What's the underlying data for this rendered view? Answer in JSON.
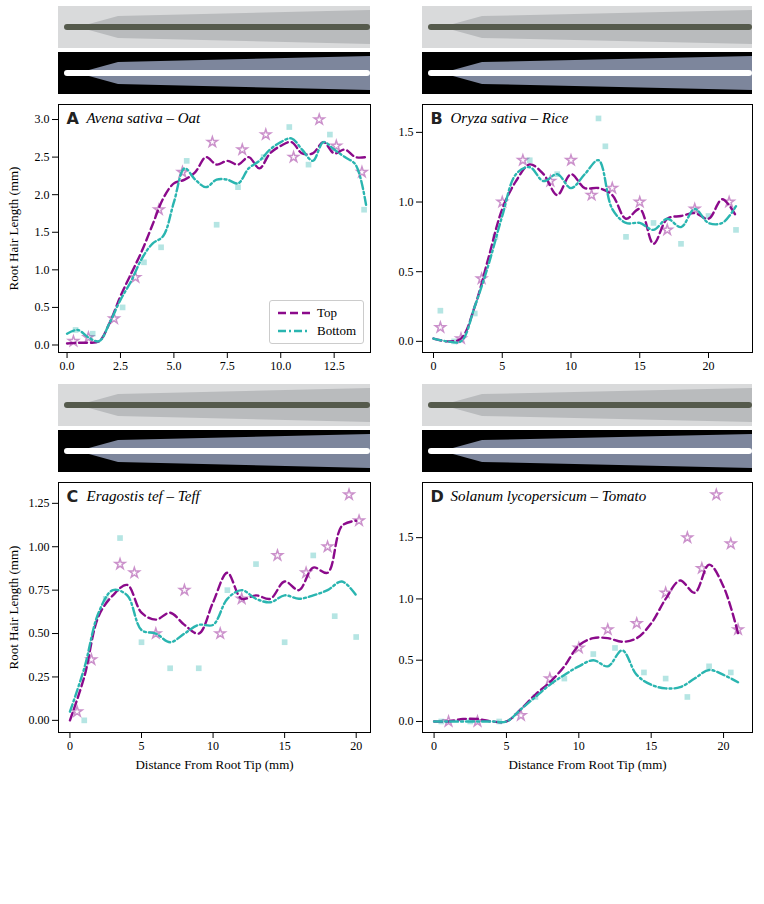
{
  "chart_data": [
    {
      "type": "line",
      "panel": "A",
      "title": "Avena sativa – Oat",
      "ylabel": "Root Hair Length (mm)",
      "xlim": [
        -0.4,
        14.2
      ],
      "xticks": [
        {
          "value": 0,
          "label": "0.0"
        },
        {
          "value": 2.5,
          "label": "2.5"
        },
        {
          "value": 5,
          "label": "5.0"
        },
        {
          "value": 7.5,
          "label": "7.5"
        },
        {
          "value": 10,
          "label": "10.0"
        },
        {
          "value": 12.5,
          "label": "12.5"
        }
      ],
      "ylim": [
        -0.1,
        3.2
      ],
      "yticks": [
        {
          "value": 0,
          "label": "0.0"
        },
        0.5,
        {
          "value": 1,
          "label": "1.0"
        },
        1.5,
        {
          "value": 2,
          "label": "2.0"
        },
        2.5,
        {
          "value": 3,
          "label": "3.0"
        }
      ],
      "legend": "lower right",
      "x": [
        0,
        0.5,
        1,
        1.5,
        2,
        2.5,
        3,
        3.5,
        4,
        4.5,
        5,
        5.5,
        6,
        6.5,
        7,
        7.5,
        8,
        8.5,
        9,
        9.5,
        10,
        10.5,
        11,
        11.5,
        12,
        12.5,
        13,
        13.5,
        14
      ],
      "series": [
        {
          "name": "Top",
          "color": "#8b0a8b",
          "line_style": "dashed",
          "marker": "star",
          "values": [
            0.02,
            0.03,
            0.03,
            0.05,
            0.3,
            0.65,
            0.95,
            1.25,
            1.6,
            1.95,
            2.15,
            2.2,
            2.3,
            2.5,
            2.4,
            2.45,
            2.4,
            2.5,
            2.35,
            2.55,
            2.65,
            2.7,
            2.55,
            2.55,
            2.7,
            2.55,
            2.6,
            2.5,
            2.5
          ],
          "points": {
            "x": [
              0.3,
              1,
              2.2,
              3.2,
              4.3,
              5.4,
              6.8,
              8.2,
              9.3,
              10.6,
              11.8,
              12.6,
              13.8
            ],
            "y": [
              0.05,
              0.1,
              0.35,
              0.9,
              1.8,
              2.3,
              2.7,
              2.6,
              2.8,
              2.5,
              3.0,
              2.65,
              2.3
            ]
          }
        },
        {
          "name": "Bottom",
          "color": "#2ab5b0",
          "line_style": "dashdot",
          "marker": "square",
          "values": [
            0.15,
            0.2,
            0.1,
            0.05,
            0.3,
            0.6,
            0.85,
            1.15,
            1.35,
            1.45,
            1.9,
            2.35,
            2.2,
            2.1,
            2.2,
            2.2,
            2.15,
            2.35,
            2.45,
            2.6,
            2.7,
            2.75,
            2.6,
            2.45,
            2.7,
            2.6,
            2.5,
            2.4,
            1.85
          ],
          "points": {
            "x": [
              0.4,
              1.2,
              2.6,
              3.6,
              4.4,
              5.6,
              7.0,
              8.0,
              9.2,
              10.4,
              11.3,
              12.3,
              13.9
            ],
            "y": [
              0.2,
              0.15,
              0.5,
              1.1,
              1.3,
              2.45,
              1.6,
              2.1,
              2.5,
              2.9,
              2.4,
              2.8,
              1.8
            ]
          }
        }
      ]
    },
    {
      "type": "line",
      "panel": "B",
      "title": "Oryza sativa – Rice",
      "xlim": [
        -0.8,
        23.2
      ],
      "xticks": [
        0,
        5,
        10,
        15,
        20
      ],
      "ylim": [
        -0.08,
        1.7
      ],
      "yticks": [
        {
          "value": 0,
          "label": "0.0"
        },
        0.5,
        {
          "value": 1,
          "label": "1.0"
        },
        1.5
      ],
      "x": [
        0,
        1,
        2,
        3,
        4,
        5,
        6,
        7,
        8,
        9,
        10,
        11,
        12,
        13,
        14,
        15,
        16,
        17,
        18,
        19,
        20,
        21,
        22
      ],
      "series": [
        {
          "name": "Top",
          "color": "#8b0a8b",
          "line_style": "dashed",
          "marker": "star",
          "values": [
            0.02,
            0.0,
            0.02,
            0.25,
            0.6,
            0.95,
            1.15,
            1.27,
            1.2,
            1.05,
            1.2,
            1.1,
            1.1,
            1.05,
            0.88,
            0.95,
            0.7,
            0.88,
            0.9,
            0.92,
            0.88,
            1.02,
            0.9
          ],
          "points": {
            "x": [
              0.5,
              2,
              3.5,
              5,
              6.5,
              8.5,
              10,
              11.5,
              13,
              15,
              17,
              19,
              21.5
            ],
            "y": [
              0.1,
              0.02,
              0.45,
              1.0,
              1.3,
              1.15,
              1.3,
              1.05,
              1.1,
              1.0,
              0.8,
              0.95,
              1.0
            ]
          }
        },
        {
          "name": "Bottom",
          "color": "#2ab5b0",
          "line_style": "dashdot",
          "marker": "square",
          "values": [
            0.02,
            0.0,
            0.0,
            0.25,
            0.55,
            0.9,
            1.2,
            1.25,
            1.15,
            1.2,
            1.1,
            1.2,
            1.3,
            0.95,
            0.85,
            0.85,
            0.8,
            0.88,
            0.82,
            0.95,
            0.85,
            0.85,
            0.97
          ],
          "points": {
            "x": [
              0.5,
              1.5,
              3,
              4.5,
              7,
              9,
              12,
              12.5,
              14,
              16,
              18,
              20,
              22
            ],
            "y": [
              0.22,
              0.0,
              0.2,
              0.75,
              1.3,
              1.2,
              1.6,
              1.4,
              0.75,
              0.85,
              0.7,
              0.9,
              0.8
            ]
          }
        }
      ]
    },
    {
      "type": "line",
      "panel": "C",
      "title": "Eragostis tef – Teff",
      "xlabel": "Distance From Root Tip (mm)",
      "ylabel": "Root Hair Length (mm)",
      "xlim": [
        -0.8,
        21
      ],
      "xticks": [
        0,
        5,
        10,
        15,
        20
      ],
      "ylim": [
        -0.07,
        1.37
      ],
      "yticks": [
        {
          "value": 0,
          "label": "0.00"
        },
        0.25,
        {
          "value": 0.5,
          "label": "0.50"
        },
        0.75,
        {
          "value": 1,
          "label": "1.00"
        },
        1.25
      ],
      "x": [
        0,
        1,
        2,
        3,
        4,
        5,
        6,
        7,
        8,
        9,
        10,
        11,
        12,
        13,
        14,
        15,
        16,
        17,
        18,
        19,
        20
      ],
      "series": [
        {
          "name": "Top",
          "color": "#8b0a8b",
          "line_style": "dashed",
          "marker": "star",
          "values": [
            0.0,
            0.25,
            0.6,
            0.72,
            0.78,
            0.62,
            0.58,
            0.62,
            0.55,
            0.5,
            0.68,
            0.85,
            0.7,
            0.72,
            0.7,
            0.8,
            0.75,
            0.88,
            0.85,
            1.12,
            1.15
          ],
          "points": {
            "x": [
              0.5,
              1.5,
              3.5,
              4.5,
              6,
              8,
              10.5,
              12,
              14.5,
              16.5,
              18,
              19.5,
              20.2
            ],
            "y": [
              0.05,
              0.35,
              0.9,
              0.85,
              0.5,
              0.75,
              0.5,
              0.7,
              0.95,
              0.85,
              1.0,
              1.3,
              1.15
            ]
          }
        },
        {
          "name": "Bottom",
          "color": "#2ab5b0",
          "line_style": "dashdot",
          "marker": "square",
          "values": [
            0.05,
            0.3,
            0.62,
            0.75,
            0.72,
            0.52,
            0.5,
            0.45,
            0.5,
            0.55,
            0.55,
            0.7,
            0.75,
            0.7,
            0.68,
            0.72,
            0.7,
            0.72,
            0.75,
            0.8,
            0.72
          ],
          "points": {
            "x": [
              1,
              2.5,
              3.5,
              5,
              7,
              9,
              11,
              13,
              15,
              17,
              18.5,
              20
            ],
            "y": [
              0.0,
              0.7,
              1.05,
              0.45,
              0.3,
              0.3,
              0.75,
              0.9,
              0.45,
              0.95,
              0.6,
              0.48
            ]
          }
        }
      ]
    },
    {
      "type": "line",
      "panel": "D",
      "title": "Solanum lycopersicum – Tomato",
      "xlabel": "Distance From Root Tip (mm)",
      "xlim": [
        -0.8,
        22
      ],
      "xticks": [
        0,
        5,
        10,
        15,
        20
      ],
      "ylim": [
        -0.09,
        1.95
      ],
      "yticks": [
        {
          "value": 0,
          "label": "0.0"
        },
        0.5,
        {
          "value": 1,
          "label": "1.0"
        },
        1.5
      ],
      "x": [
        0,
        1,
        2,
        3,
        4,
        5,
        6,
        7,
        8,
        9,
        10,
        11,
        12,
        13,
        14,
        15,
        16,
        17,
        18,
        19,
        20,
        21
      ],
      "series": [
        {
          "name": "Top",
          "color": "#8b0a8b",
          "line_style": "dashed",
          "marker": "star",
          "values": [
            0,
            0,
            0.02,
            0.02,
            0,
            0,
            0.1,
            0.22,
            0.32,
            0.45,
            0.62,
            0.68,
            0.68,
            0.65,
            0.68,
            0.8,
            1.0,
            1.15,
            1.05,
            1.28,
            1.1,
            0.72
          ],
          "points": {
            "x": [
              1,
              3,
              6,
              8,
              10,
              12,
              14,
              16,
              17.5,
              18.5,
              19.5,
              20.5,
              21
            ],
            "y": [
              0,
              0,
              0.05,
              0.35,
              0.6,
              0.75,
              0.8,
              1.05,
              1.5,
              1.25,
              1.85,
              1.45,
              0.75
            ]
          }
        },
        {
          "name": "Bottom",
          "color": "#2ab5b0",
          "line_style": "dashdot",
          "marker": "square",
          "values": [
            0,
            0,
            0,
            0,
            0,
            0,
            0.1,
            0.2,
            0.3,
            0.38,
            0.45,
            0.5,
            0.45,
            0.58,
            0.38,
            0.3,
            0.27,
            0.28,
            0.35,
            0.42,
            0.38,
            0.32
          ],
          "points": {
            "x": [
              0.5,
              2.5,
              4.5,
              7,
              9,
              11,
              12.5,
              14.5,
              16,
              17.5,
              19,
              20.5
            ],
            "y": [
              0,
              0,
              0,
              0.2,
              0.35,
              0.55,
              0.6,
              0.4,
              0.35,
              0.2,
              0.45,
              0.4
            ]
          }
        }
      ]
    }
  ]
}
